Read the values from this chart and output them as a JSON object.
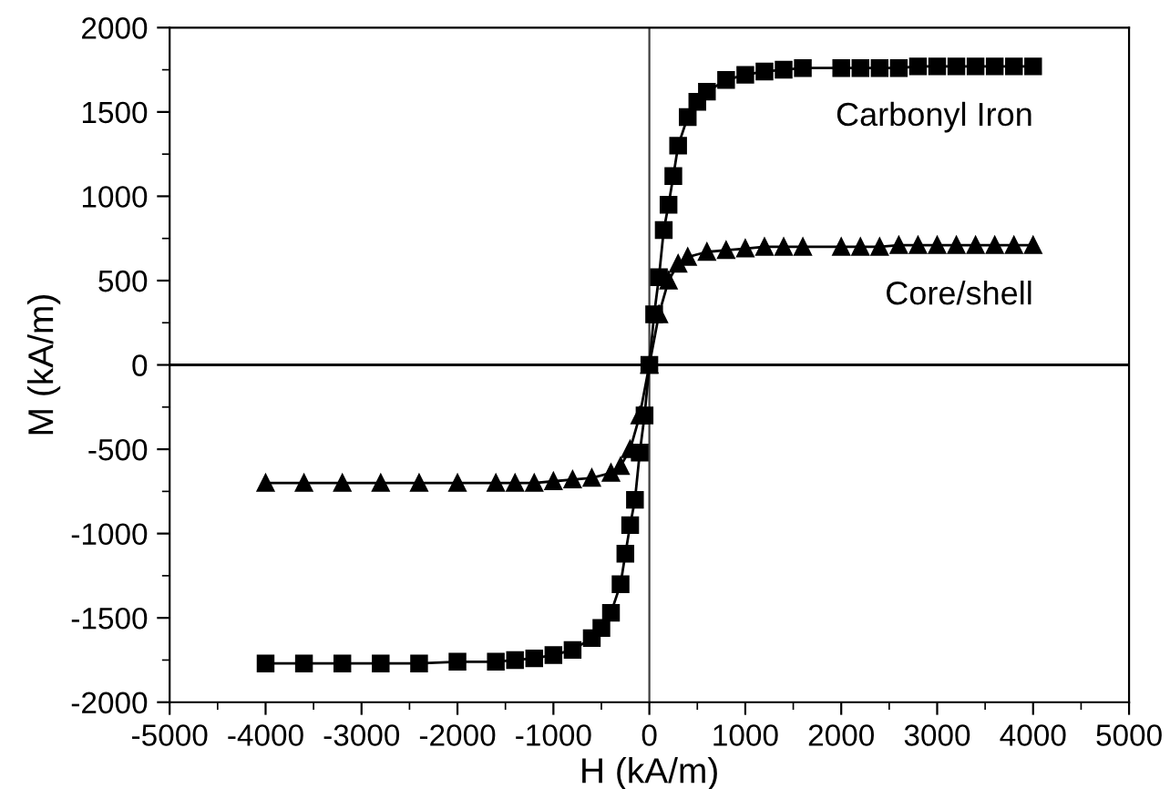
{
  "chart_data": {
    "type": "line",
    "xlabel": "H (kA/m)",
    "ylabel": "M (kA/m)",
    "xlim": [
      -5000,
      5000
    ],
    "xticks": [
      -5000,
      -4000,
      -3000,
      -2000,
      -1000,
      0,
      1000,
      2000,
      3000,
      4000,
      5000
    ],
    "ylim": [
      -2000,
      2000
    ],
    "yticks": [
      -2000,
      -1500,
      -1000,
      -500,
      0,
      500,
      1000,
      1500,
      2000
    ],
    "grid": false,
    "legend": false,
    "line_style": "solid",
    "ref_lines": [
      {
        "axis": "x",
        "value": 0,
        "color": "#404040"
      },
      {
        "axis": "y",
        "value": 0,
        "color": "#000000"
      }
    ],
    "series": [
      {
        "name": "Carbonyl Iron",
        "color": "#000000",
        "marker": "square",
        "x": [
          -4000,
          -3600,
          -3200,
          -2800,
          -2400,
          -2000,
          -1600,
          -1400,
          -1200,
          -1000,
          -800,
          -600,
          -500,
          -400,
          -300,
          -250,
          -200,
          -150,
          -100,
          -50,
          0,
          50,
          100,
          150,
          200,
          250,
          300,
          400,
          500,
          600,
          800,
          1000,
          1200,
          1400,
          1600,
          2000,
          2200,
          2400,
          2600,
          2800,
          3000,
          3200,
          3400,
          3600,
          3800,
          4000
        ],
        "values": [
          -1770,
          -1770,
          -1770,
          -1770,
          -1770,
          -1760,
          -1760,
          -1750,
          -1740,
          -1720,
          -1690,
          -1620,
          -1560,
          -1470,
          -1300,
          -1120,
          -950,
          -800,
          -520,
          -300,
          0,
          300,
          520,
          800,
          950,
          1120,
          1300,
          1470,
          1560,
          1620,
          1690,
          1720,
          1740,
          1750,
          1760,
          1760,
          1760,
          1760,
          1760,
          1770,
          1770,
          1770,
          1770,
          1770,
          1770,
          1770
        ]
      },
      {
        "name": "Core/shell",
        "color": "#000000",
        "marker": "triangle",
        "x": [
          -4000,
          -3600,
          -3200,
          -2800,
          -2400,
          -2000,
          -1600,
          -1400,
          -1200,
          -1000,
          -800,
          -600,
          -400,
          -300,
          -200,
          -100,
          0,
          100,
          200,
          300,
          400,
          600,
          800,
          1000,
          1200,
          1400,
          1600,
          2000,
          2200,
          2400,
          2600,
          2800,
          3000,
          3200,
          3400,
          3600,
          3800,
          4000
        ],
        "values": [
          -700,
          -700,
          -700,
          -700,
          -700,
          -700,
          -700,
          -700,
          -700,
          -690,
          -680,
          -670,
          -640,
          -600,
          -500,
          -300,
          0,
          300,
          500,
          600,
          640,
          670,
          680,
          690,
          700,
          700,
          700,
          700,
          700,
          700,
          710,
          710,
          710,
          710,
          710,
          710,
          710,
          710
        ]
      }
    ]
  }
}
